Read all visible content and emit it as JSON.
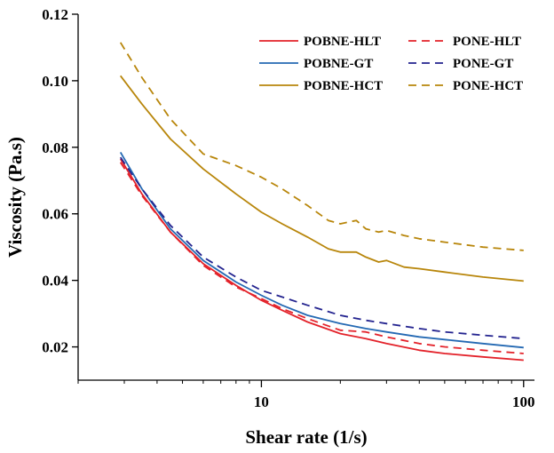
{
  "chart_data": {
    "type": "line",
    "title": "",
    "xlabel": "Shear rate (1/s)",
    "ylabel": "Viscosity (Pa.s)",
    "xscale": "log",
    "xlim": [
      2,
      110
    ],
    "ylim": [
      0.01,
      0.12
    ],
    "xticks": [
      {
        "value": 10,
        "label": "10"
      },
      {
        "value": 100,
        "label": "100"
      }
    ],
    "yticks": [
      {
        "value": 0.02,
        "label": "0.02"
      },
      {
        "value": 0.04,
        "label": "0.04"
      },
      {
        "value": 0.06,
        "label": "0.06"
      },
      {
        "value": 0.08,
        "label": "0.08"
      },
      {
        "value": 0.1,
        "label": "0.10"
      },
      {
        "value": 0.12,
        "label": "0.12"
      }
    ],
    "grid": false,
    "legend_position": "top-right",
    "series": [
      {
        "name": "POBNE-HLT",
        "color": "#e3222a",
        "dash": "solid",
        "x": [
          2.9,
          3.5,
          4.5,
          6,
          8,
          10,
          12,
          15,
          20,
          25,
          30,
          40,
          50,
          70,
          100
        ],
        "y": [
          0.0765,
          0.066,
          0.0545,
          0.045,
          0.0385,
          0.034,
          0.031,
          0.0275,
          0.024,
          0.0225,
          0.021,
          0.019,
          0.018,
          0.017,
          0.016
        ]
      },
      {
        "name": "PONE-HLT",
        "color": "#e3222a",
        "dash": "dashed",
        "x": [
          2.9,
          3.5,
          4.5,
          6,
          8,
          10,
          12,
          15,
          20,
          25,
          30,
          40,
          50,
          70,
          100
        ],
        "y": [
          0.0755,
          0.0655,
          0.0545,
          0.0445,
          0.038,
          0.0345,
          0.0315,
          0.0285,
          0.025,
          0.0245,
          0.023,
          0.021,
          0.02,
          0.019,
          0.018
        ]
      },
      {
        "name": "POBNE-GT",
        "color": "#2469b3",
        "dash": "solid",
        "x": [
          2.9,
          3.5,
          4.5,
          6,
          8,
          10,
          12,
          15,
          20,
          25,
          30,
          40,
          50,
          70,
          100
        ],
        "y": [
          0.0785,
          0.0675,
          0.0555,
          0.046,
          0.0395,
          0.0355,
          0.0325,
          0.0295,
          0.027,
          0.0255,
          0.0245,
          0.023,
          0.0222,
          0.021,
          0.0198
        ]
      },
      {
        "name": "PONE-GT",
        "color": "#23238f",
        "dash": "dashed",
        "x": [
          2.9,
          3.5,
          4.5,
          6,
          8,
          10,
          12,
          15,
          20,
          25,
          30,
          40,
          50,
          70,
          100
        ],
        "y": [
          0.077,
          0.0675,
          0.0565,
          0.047,
          0.041,
          0.037,
          0.035,
          0.0325,
          0.0295,
          0.028,
          0.027,
          0.0255,
          0.0245,
          0.0235,
          0.0225
        ]
      },
      {
        "name": "POBNE-HCT",
        "color": "#b8860b",
        "dash": "solid",
        "x": [
          2.9,
          3.5,
          4.5,
          6,
          8,
          10,
          12,
          15,
          18,
          20,
          23,
          25,
          28,
          30,
          35,
          40,
          50,
          70,
          100
        ],
        "y": [
          0.1015,
          0.093,
          0.0825,
          0.0735,
          0.066,
          0.0605,
          0.057,
          0.053,
          0.0495,
          0.0485,
          0.0485,
          0.047,
          0.0455,
          0.046,
          0.044,
          0.0435,
          0.0425,
          0.041,
          0.0398
        ]
      },
      {
        "name": "PONE-HCT",
        "color": "#b8860b",
        "dash": "dashed",
        "x": [
          2.9,
          3.5,
          4.5,
          6,
          8,
          10,
          12,
          15,
          18,
          20,
          23,
          25,
          28,
          30,
          35,
          40,
          50,
          70,
          100
        ],
        "y": [
          0.1115,
          0.101,
          0.0885,
          0.078,
          0.0745,
          0.071,
          0.0675,
          0.0625,
          0.058,
          0.057,
          0.058,
          0.0555,
          0.0545,
          0.055,
          0.0535,
          0.0525,
          0.0515,
          0.05,
          0.049
        ]
      }
    ]
  }
}
